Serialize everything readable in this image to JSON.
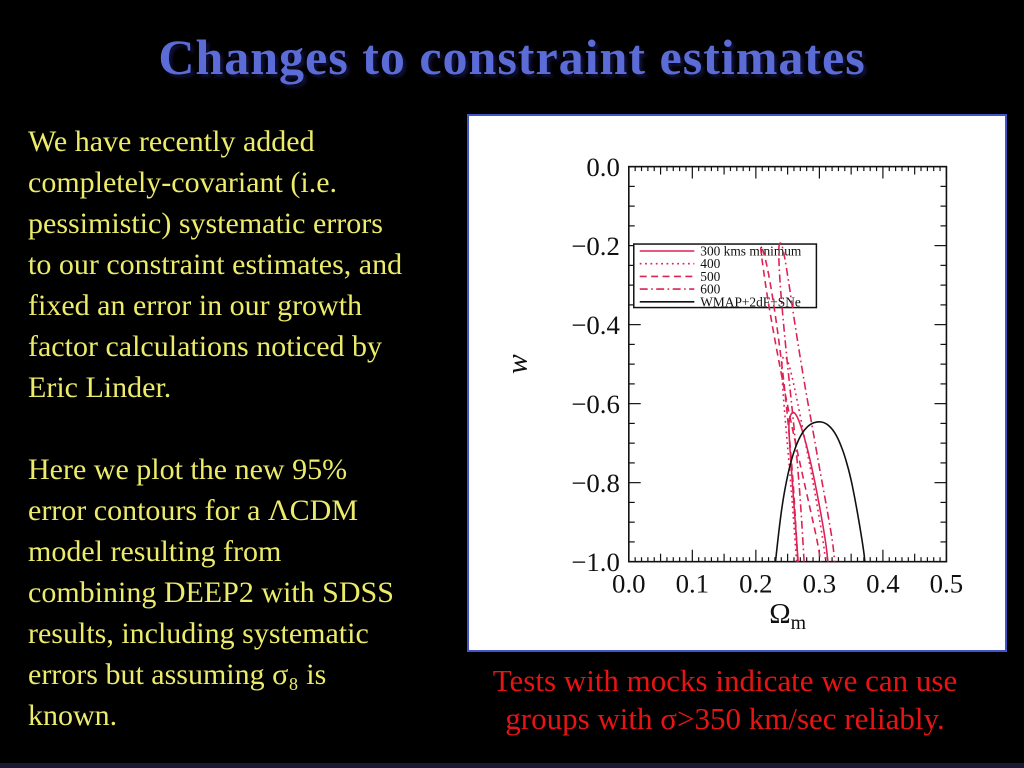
{
  "slide": {
    "title": "Changes to constraint estimates",
    "colors": {
      "title": "#5c6cd6",
      "body_text": "#ecec6a",
      "caption": "#e81414",
      "background": "#000000",
      "plot_border": "#4254c8",
      "bottom_strip": "#191933",
      "contour_red": "#dd2255",
      "contour_black": "#111111"
    }
  },
  "left_text": {
    "para1": [
      "We have recently added",
      "completely-covariant (i.e.",
      "pessimistic) systematic errors",
      "to our constraint estimates, and",
      "fixed an error in our growth",
      "factor calculations noticed by",
      "Eric Linder."
    ],
    "para2": [
      "Here we plot the new 95%",
      "error contours for a ΛCDM",
      "model resulting from",
      "combining DEEP2 with SDSS",
      "results, including systematic",
      "errors but assuming σ₈ is",
      "known."
    ]
  },
  "caption": {
    "lines": [
      "Tests with mocks indicate we can use",
      "groups with σ>350 km/sec reliably."
    ]
  },
  "chart_data": {
    "type": "line",
    "title": "",
    "xlabel": "Ω_m",
    "xlabel_main": "Ω",
    "xlabel_sub": "m",
    "ylabel": "w",
    "xlim": [
      0.0,
      0.5
    ],
    "ylim": [
      -1.0,
      0.0
    ],
    "xticks": [
      0.0,
      0.1,
      0.2,
      0.3,
      0.4,
      0.5
    ],
    "xtick_labels": [
      "0.0",
      "0.1",
      "0.2",
      "0.3",
      "0.4",
      "0.5"
    ],
    "yticks": [
      0.0,
      -0.2,
      -0.4,
      -0.6,
      -0.8,
      -1.0
    ],
    "ytick_labels": [
      "0.0",
      "−0.2",
      "−0.4",
      "−0.6",
      "−0.8",
      "−1.0"
    ],
    "minor_xtick_step": 0.01,
    "mid_xtick_step": 0.05,
    "minor_ytick_step": 0.05,
    "grid": false,
    "legend_position": "upper-left-inside",
    "series": [
      {
        "name": "300 kms minimum",
        "color": "#dd2255",
        "linestyle": "solid",
        "points": [
          [
            0.2665,
            -1.0
          ],
          [
            0.2625,
            -0.91
          ],
          [
            0.2575,
            -0.8
          ],
          [
            0.2535,
            -0.71
          ],
          [
            0.2515,
            -0.655
          ],
          [
            0.2535,
            -0.632
          ],
          [
            0.258,
            -0.62
          ],
          [
            0.2635,
            -0.627
          ],
          [
            0.27,
            -0.652
          ],
          [
            0.279,
            -0.7
          ],
          [
            0.29,
            -0.775
          ],
          [
            0.301,
            -0.865
          ],
          [
            0.31,
            -0.95
          ],
          [
            0.3135,
            -1.0
          ]
        ]
      },
      {
        "name": "400",
        "color": "#dd2255",
        "linestyle": "dotted",
        "points": [
          [
            0.264,
            -1.0
          ],
          [
            0.259,
            -0.885
          ],
          [
            0.2525,
            -0.755
          ],
          [
            0.246,
            -0.635
          ],
          [
            0.2415,
            -0.545
          ],
          [
            0.2405,
            -0.497
          ],
          [
            0.2435,
            -0.478
          ],
          [
            0.2485,
            -0.483
          ],
          [
            0.2555,
            -0.52
          ],
          [
            0.2655,
            -0.595
          ],
          [
            0.277,
            -0.69
          ],
          [
            0.289,
            -0.79
          ],
          [
            0.3,
            -0.89
          ],
          [
            0.307,
            -0.96
          ],
          [
            0.31,
            -1.0
          ]
        ]
      },
      {
        "name": "500",
        "color": "#dd2255",
        "linestyle": "dashed",
        "points": [
          [
            0.266,
            -1.0
          ],
          [
            0.262,
            -0.88
          ],
          [
            0.256,
            -0.74
          ],
          [
            0.248,
            -0.6
          ],
          [
            0.238,
            -0.46
          ],
          [
            0.227,
            -0.335
          ],
          [
            0.217,
            -0.245
          ],
          [
            0.21,
            -0.205
          ],
          [
            0.207,
            -0.198
          ],
          [
            0.21,
            -0.24
          ],
          [
            0.218,
            -0.33
          ],
          [
            0.23,
            -0.44
          ],
          [
            0.243,
            -0.55
          ],
          [
            0.257,
            -0.66
          ],
          [
            0.272,
            -0.77
          ],
          [
            0.286,
            -0.87
          ],
          [
            0.297,
            -0.95
          ],
          [
            0.302,
            -1.0
          ]
        ]
      },
      {
        "name": "600",
        "color": "#dd2255",
        "linestyle": "dashdot",
        "points": [
          [
            0.276,
            -1.0
          ],
          [
            0.272,
            -0.89
          ],
          [
            0.266,
            -0.76
          ],
          [
            0.258,
            -0.625
          ],
          [
            0.249,
            -0.49
          ],
          [
            0.2425,
            -0.38
          ],
          [
            0.2375,
            -0.285
          ],
          [
            0.2355,
            -0.21
          ],
          [
            0.238,
            -0.188
          ],
          [
            0.2435,
            -0.21
          ],
          [
            0.2525,
            -0.3
          ],
          [
            0.2635,
            -0.42
          ],
          [
            0.2755,
            -0.54
          ],
          [
            0.289,
            -0.66
          ],
          [
            0.302,
            -0.78
          ],
          [
            0.3135,
            -0.88
          ],
          [
            0.321,
            -0.95
          ],
          [
            0.324,
            -1.0
          ]
        ]
      },
      {
        "name": "WMAP+2dF+SNe",
        "color": "#111111",
        "linestyle": "solid",
        "points": [
          [
            0.231,
            -1.0
          ],
          [
            0.2365,
            -0.915
          ],
          [
            0.2435,
            -0.835
          ],
          [
            0.252,
            -0.765
          ],
          [
            0.262,
            -0.71
          ],
          [
            0.273,
            -0.672
          ],
          [
            0.285,
            -0.652
          ],
          [
            0.2975,
            -0.645
          ],
          [
            0.309,
            -0.648
          ],
          [
            0.3195,
            -0.662
          ],
          [
            0.3295,
            -0.688
          ],
          [
            0.339,
            -0.727
          ],
          [
            0.348,
            -0.778
          ],
          [
            0.356,
            -0.84
          ],
          [
            0.3635,
            -0.908
          ],
          [
            0.37,
            -0.975
          ],
          [
            0.3715,
            -1.0
          ]
        ]
      }
    ]
  }
}
